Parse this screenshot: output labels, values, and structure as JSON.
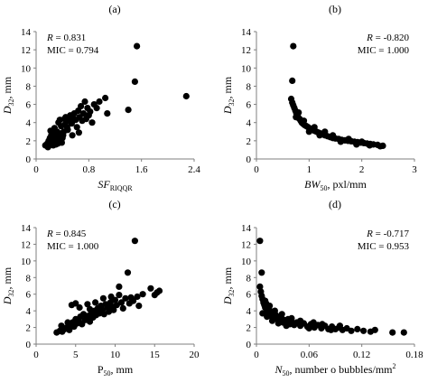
{
  "chart_data": [
    {
      "id": "a",
      "type": "scatter",
      "panel_label": "(a)",
      "ylabel": "D32, mm",
      "ylabel_main": "D",
      "ylabel_sub": "32",
      "ylabel_unit": ", mm",
      "xlabel_main": "SF",
      "xlabel_sub": "RIQQR",
      "xlabel_unit": "",
      "xlabel_italic": true,
      "stats": [
        "R = 0.831",
        "MIC = 0.794"
      ],
      "stats_align": "left",
      "xlim": [
        0,
        2.4
      ],
      "ylim": [
        0,
        14
      ],
      "x_ticks": [
        "0",
        "0.8",
        "1.6",
        "2.4"
      ],
      "x_tick_values": [
        0,
        0.8,
        1.6,
        2.4
      ],
      "y_ticks": [
        "0",
        "2",
        "4",
        "6",
        "8",
        "10",
        "12",
        "14"
      ],
      "y_tick_values": [
        0,
        2,
        4,
        6,
        8,
        10,
        12,
        14
      ],
      "points": [
        [
          0.14,
          1.5
        ],
        [
          0.17,
          1.7
        ],
        [
          0.19,
          2.0
        ],
        [
          0.2,
          1.5
        ],
        [
          0.21,
          2.3
        ],
        [
          0.22,
          1.8
        ],
        [
          0.23,
          2.6
        ],
        [
          0.24,
          1.6
        ],
        [
          0.25,
          2.0
        ],
        [
          0.26,
          2.9
        ],
        [
          0.26,
          1.5
        ],
        [
          0.27,
          2.2
        ],
        [
          0.28,
          3.4
        ],
        [
          0.29,
          1.8
        ],
        [
          0.3,
          2.5
        ],
        [
          0.3,
          1.6
        ],
        [
          0.31,
          2.0
        ],
        [
          0.32,
          3.0
        ],
        [
          0.33,
          1.7
        ],
        [
          0.33,
          2.4
        ],
        [
          0.34,
          4.0
        ],
        [
          0.35,
          2.2
        ],
        [
          0.36,
          1.9
        ],
        [
          0.37,
          2.8
        ],
        [
          0.38,
          3.6
        ],
        [
          0.39,
          1.8
        ],
        [
          0.4,
          2.3
        ],
        [
          0.41,
          2.6
        ],
        [
          0.42,
          3.0
        ],
        [
          0.43,
          4.4
        ],
        [
          0.44,
          3.8
        ],
        [
          0.45,
          4.6
        ],
        [
          0.47,
          3.5
        ],
        [
          0.5,
          4.2
        ],
        [
          0.52,
          4.8
        ],
        [
          0.54,
          3.9
        ],
        [
          0.56,
          4.5
        ],
        [
          0.58,
          5.0
        ],
        [
          0.6,
          4.3
        ],
        [
          0.62,
          3.5
        ],
        [
          0.64,
          5.3
        ],
        [
          0.66,
          4.6
        ],
        [
          0.68,
          5.8
        ],
        [
          0.7,
          4.2
        ],
        [
          0.72,
          5.0
        ],
        [
          0.74,
          6.3
        ],
        [
          0.76,
          4.4
        ],
        [
          0.78,
          5.6
        ],
        [
          0.8,
          4.8
        ],
        [
          0.82,
          5.2
        ],
        [
          0.85,
          4.0
        ],
        [
          0.88,
          6.0
        ],
        [
          0.92,
          5.6
        ],
        [
          0.96,
          6.3
        ],
        [
          1.05,
          6.7
        ],
        [
          1.08,
          5.0
        ],
        [
          1.4,
          5.4
        ],
        [
          1.5,
          8.5
        ],
        [
          1.53,
          12.4
        ],
        [
          2.28,
          6.9
        ],
        [
          0.18,
          1.3
        ],
        [
          0.22,
          3.1
        ],
        [
          0.36,
          4.3
        ],
        [
          0.48,
          3.2
        ],
        [
          0.55,
          2.6
        ],
        [
          0.65,
          2.9
        ]
      ]
    },
    {
      "id": "b",
      "type": "scatter",
      "panel_label": "(b)",
      "ylabel": "D32, mm",
      "ylabel_main": "D",
      "ylabel_sub": "32",
      "ylabel_unit": ", mm",
      "xlabel_main": "BW",
      "xlabel_sub": "50",
      "xlabel_unit": ", pxl/mm",
      "xlabel_italic": true,
      "stats": [
        "R = -0.820",
        "MIC = 1.000"
      ],
      "stats_align": "right",
      "xlim": [
        0,
        3
      ],
      "ylim": [
        0,
        14
      ],
      "x_ticks": [
        "0",
        "1",
        "2",
        "3"
      ],
      "x_tick_values": [
        0,
        1,
        2,
        3
      ],
      "y_ticks": [
        "0",
        "2",
        "4",
        "6",
        "8",
        "10",
        "12",
        "14"
      ],
      "y_tick_values": [
        0,
        2,
        4,
        6,
        8,
        10,
        12,
        14
      ],
      "points": [
        [
          0.7,
          12.4
        ],
        [
          0.68,
          8.6
        ],
        [
          0.66,
          6.6
        ],
        [
          0.68,
          6.2
        ],
        [
          0.7,
          5.9
        ],
        [
          0.72,
          5.6
        ],
        [
          0.74,
          5.3
        ],
        [
          0.76,
          5.0
        ],
        [
          0.78,
          4.8
        ],
        [
          0.8,
          4.5
        ],
        [
          0.82,
          4.4
        ],
        [
          0.84,
          4.2
        ],
        [
          0.86,
          4.0
        ],
        [
          0.88,
          3.9
        ],
        [
          0.9,
          3.8
        ],
        [
          0.92,
          3.7
        ],
        [
          0.95,
          3.6
        ],
        [
          0.98,
          3.5
        ],
        [
          1.0,
          3.4
        ],
        [
          1.03,
          3.3
        ],
        [
          1.06,
          3.2
        ],
        [
          1.1,
          3.1
        ],
        [
          1.14,
          3.0
        ],
        [
          1.18,
          2.9
        ],
        [
          1.22,
          2.8
        ],
        [
          1.26,
          2.7
        ],
        [
          1.3,
          2.6
        ],
        [
          1.35,
          2.5
        ],
        [
          1.4,
          2.4
        ],
        [
          1.45,
          2.3
        ],
        [
          1.5,
          2.25
        ],
        [
          1.56,
          2.2
        ],
        [
          1.62,
          2.1
        ],
        [
          1.68,
          2.05
        ],
        [
          1.74,
          2.0
        ],
        [
          1.8,
          1.95
        ],
        [
          1.86,
          1.9
        ],
        [
          1.92,
          1.85
        ],
        [
          1.98,
          1.8
        ],
        [
          2.04,
          1.75
        ],
        [
          2.1,
          1.7
        ],
        [
          2.16,
          1.65
        ],
        [
          2.22,
          1.6
        ],
        [
          2.3,
          1.55
        ],
        [
          2.4,
          1.45
        ],
        [
          0.75,
          4.6
        ],
        [
          0.8,
          5.1
        ],
        [
          0.9,
          4.2
        ],
        [
          1.0,
          3.0
        ],
        [
          1.1,
          3.5
        ],
        [
          1.2,
          2.6
        ],
        [
          1.3,
          3.0
        ],
        [
          1.45,
          2.6
        ],
        [
          1.6,
          1.9
        ],
        [
          1.75,
          2.2
        ],
        [
          1.9,
          1.6
        ],
        [
          2.0,
          1.9
        ],
        [
          2.15,
          1.5
        ],
        [
          2.35,
          1.4
        ]
      ]
    },
    {
      "id": "c",
      "type": "scatter",
      "panel_label": "(c)",
      "ylabel": "D32, mm",
      "ylabel_main": "D",
      "ylabel_sub": "32",
      "ylabel_unit": ", mm",
      "xlabel_main": "P",
      "xlabel_sub": "50",
      "xlabel_unit": ", mm",
      "xlabel_italic": false,
      "stats": [
        "R = 0.845",
        "MIC = 1.000"
      ],
      "stats_align": "left",
      "xlim": [
        0,
        20
      ],
      "ylim": [
        0,
        14
      ],
      "x_ticks": [
        "0",
        "5",
        "10",
        "15",
        "20"
      ],
      "x_tick_values": [
        0,
        5,
        10,
        15,
        20
      ],
      "y_ticks": [
        "0",
        "2",
        "4",
        "6",
        "8",
        "10",
        "12",
        "14"
      ],
      "y_tick_values": [
        0,
        2,
        4,
        6,
        8,
        10,
        12,
        14
      ],
      "points": [
        [
          2.6,
          1.4
        ],
        [
          3.0,
          1.6
        ],
        [
          3.3,
          1.5
        ],
        [
          3.6,
          1.8
        ],
        [
          3.9,
          2.0
        ],
        [
          4.2,
          1.7
        ],
        [
          4.4,
          2.3
        ],
        [
          4.6,
          2.6
        ],
        [
          4.8,
          2.1
        ],
        [
          5.0,
          3.0
        ],
        [
          5.2,
          2.5
        ],
        [
          5.4,
          2.8
        ],
        [
          5.6,
          3.3
        ],
        [
          5.8,
          2.4
        ],
        [
          6.0,
          3.6
        ],
        [
          6.2,
          2.9
        ],
        [
          6.4,
          3.1
        ],
        [
          6.6,
          3.4
        ],
        [
          6.8,
          2.7
        ],
        [
          7.0,
          3.8
        ],
        [
          7.2,
          3.2
        ],
        [
          7.4,
          4.0
        ],
        [
          7.6,
          3.5
        ],
        [
          7.8,
          4.3
        ],
        [
          8.0,
          3.7
        ],
        [
          8.2,
          4.6
        ],
        [
          8.4,
          4.1
        ],
        [
          8.6,
          3.6
        ],
        [
          8.8,
          4.8
        ],
        [
          9.0,
          4.4
        ],
        [
          9.2,
          3.9
        ],
        [
          9.4,
          5.0
        ],
        [
          9.6,
          4.5
        ],
        [
          9.8,
          4.1
        ],
        [
          10.0,
          5.3
        ],
        [
          10.2,
          4.7
        ],
        [
          10.5,
          6.9
        ],
        [
          10.8,
          5.0
        ],
        [
          11.0,
          4.3
        ],
        [
          11.3,
          5.5
        ],
        [
          11.6,
          8.6
        ],
        [
          11.8,
          4.9
        ],
        [
          12.0,
          5.6
        ],
        [
          12.3,
          5.2
        ],
        [
          12.5,
          12.4
        ],
        [
          12.8,
          5.7
        ],
        [
          13.0,
          4.6
        ],
        [
          13.5,
          6.0
        ],
        [
          14.5,
          6.7
        ],
        [
          15.0,
          5.9
        ],
        [
          15.3,
          6.2
        ],
        [
          15.6,
          6.4
        ],
        [
          4.5,
          4.7
        ],
        [
          5.0,
          4.9
        ],
        [
          5.5,
          4.4
        ],
        [
          6.5,
          4.8
        ],
        [
          7.5,
          5.0
        ],
        [
          8.5,
          5.5
        ],
        [
          9.5,
          5.7
        ],
        [
          10.5,
          5.9
        ],
        [
          3.2,
          2.2
        ],
        [
          4.0,
          2.6
        ],
        [
          6.8,
          4.2
        ]
      ]
    },
    {
      "id": "d",
      "type": "scatter",
      "panel_label": "(d)",
      "ylabel": "D32, mm",
      "ylabel_main": "D",
      "ylabel_sub": "32",
      "ylabel_unit": ", mm",
      "xlabel_main": "N",
      "xlabel_sub": "50",
      "xlabel_unit": ", number o bubbles/mm",
      "xlabel_sup": "2",
      "xlabel_italic": true,
      "stats": [
        "R = -0.717",
        "MIC = 0.953"
      ],
      "stats_align": "right",
      "xlim": [
        0,
        0.18
      ],
      "ylim": [
        0,
        14
      ],
      "x_ticks": [
        "0",
        "0.06",
        "0.12",
        "0.18"
      ],
      "x_tick_values": [
        0,
        0.06,
        0.12,
        0.18
      ],
      "y_ticks": [
        "0",
        "2",
        "4",
        "6",
        "8",
        "10",
        "12",
        "14"
      ],
      "y_tick_values": [
        0,
        2,
        4,
        6,
        8,
        10,
        12,
        14
      ],
      "points": [
        [
          0.004,
          12.4
        ],
        [
          0.006,
          8.6
        ],
        [
          0.004,
          6.9
        ],
        [
          0.005,
          6.3
        ],
        [
          0.006,
          5.8
        ],
        [
          0.007,
          5.4
        ],
        [
          0.008,
          5.0
        ],
        [
          0.009,
          4.7
        ],
        [
          0.01,
          4.4
        ],
        [
          0.011,
          4.9
        ],
        [
          0.012,
          4.1
        ],
        [
          0.013,
          3.8
        ],
        [
          0.014,
          4.3
        ],
        [
          0.015,
          3.6
        ],
        [
          0.016,
          3.4
        ],
        [
          0.018,
          3.9
        ],
        [
          0.02,
          3.2
        ],
        [
          0.022,
          3.5
        ],
        [
          0.024,
          3.0
        ],
        [
          0.026,
          2.8
        ],
        [
          0.028,
          3.3
        ],
        [
          0.03,
          2.6
        ],
        [
          0.032,
          2.9
        ],
        [
          0.034,
          2.5
        ],
        [
          0.036,
          3.0
        ],
        [
          0.038,
          2.4
        ],
        [
          0.04,
          2.7
        ],
        [
          0.043,
          2.3
        ],
        [
          0.046,
          2.6
        ],
        [
          0.05,
          2.2
        ],
        [
          0.054,
          2.5
        ],
        [
          0.058,
          2.1
        ],
        [
          0.062,
          2.4
        ],
        [
          0.066,
          2.0
        ],
        [
          0.07,
          2.3
        ],
        [
          0.074,
          1.9
        ],
        [
          0.078,
          2.2
        ],
        [
          0.082,
          1.8
        ],
        [
          0.086,
          2.1
        ],
        [
          0.09,
          1.8
        ],
        [
          0.094,
          2.0
        ],
        [
          0.098,
          1.7
        ],
        [
          0.103,
          1.9
        ],
        [
          0.108,
          1.6
        ],
        [
          0.115,
          1.8
        ],
        [
          0.122,
          1.6
        ],
        [
          0.13,
          1.5
        ],
        [
          0.135,
          1.7
        ],
        [
          0.155,
          1.4
        ],
        [
          0.168,
          1.4
        ],
        [
          0.007,
          3.7
        ],
        [
          0.01,
          5.2
        ],
        [
          0.012,
          3.3
        ],
        [
          0.015,
          4.6
        ],
        [
          0.018,
          2.8
        ],
        [
          0.021,
          4.0
        ],
        [
          0.025,
          2.5
        ],
        [
          0.029,
          3.6
        ],
        [
          0.034,
          2.2
        ],
        [
          0.04,
          3.1
        ],
        [
          0.05,
          2.8
        ],
        [
          0.06,
          1.9
        ],
        [
          0.065,
          2.6
        ],
        [
          0.075,
          2.4
        ],
        [
          0.085,
          1.7
        ],
        [
          0.095,
          2.2
        ]
      ]
    }
  ]
}
